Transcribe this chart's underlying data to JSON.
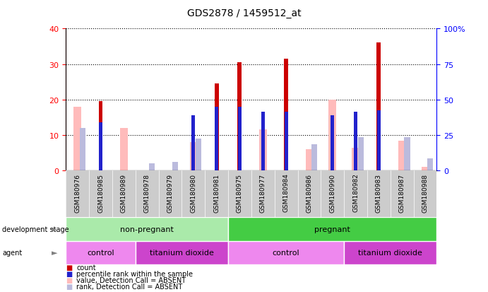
{
  "title": "GDS2878 / 1459512_at",
  "samples": [
    "GSM180976",
    "GSM180985",
    "GSM180989",
    "GSM180978",
    "GSM180979",
    "GSM180980",
    "GSM180981",
    "GSM180975",
    "GSM180977",
    "GSM180984",
    "GSM180986",
    "GSM180990",
    "GSM180982",
    "GSM180983",
    "GSM180987",
    "GSM180988"
  ],
  "count": [
    0,
    19.5,
    0,
    0,
    0,
    0,
    24.5,
    30.5,
    0,
    31.5,
    0,
    0,
    0,
    36,
    0,
    0
  ],
  "percentile_rank": [
    0,
    13.5,
    0,
    0,
    0,
    15.5,
    18,
    18,
    16.5,
    16.5,
    0,
    15.5,
    16.5,
    17,
    0,
    0
  ],
  "value_absent": [
    18,
    0,
    12,
    0,
    0,
    8,
    0,
    0,
    11.5,
    0,
    6,
    20,
    6.5,
    0,
    8.5,
    1
  ],
  "rank_absent": [
    12,
    0,
    0,
    2,
    2.5,
    9,
    0,
    0,
    0,
    0,
    7.5,
    0,
    9.5,
    0,
    9.5,
    3.5
  ],
  "ylim_left": [
    0,
    40
  ],
  "ylim_right": [
    0,
    100
  ],
  "yticks_left": [
    0,
    10,
    20,
    30,
    40
  ],
  "yticks_right": [
    0,
    25,
    50,
    75,
    100
  ],
  "color_count": "#cc0000",
  "color_percentile": "#2222cc",
  "color_value_absent": "#ffbbbb",
  "color_rank_absent": "#bbbbdd",
  "dev_stage_groups": [
    {
      "label": "non-pregnant",
      "start": 0,
      "end": 7,
      "color": "#aaeaaa"
    },
    {
      "label": "pregnant",
      "start": 7,
      "end": 16,
      "color": "#44cc44"
    }
  ],
  "agent_groups": [
    {
      "label": "control",
      "start": 0,
      "end": 3,
      "color": "#ee88ee"
    },
    {
      "label": "titanium dioxide",
      "start": 3,
      "end": 7,
      "color": "#cc44cc"
    },
    {
      "label": "control",
      "start": 7,
      "end": 12,
      "color": "#ee88ee"
    },
    {
      "label": "titanium dioxide",
      "start": 12,
      "end": 16,
      "color": "#cc44cc"
    }
  ],
  "legend_items": [
    {
      "label": "count",
      "color": "#cc0000"
    },
    {
      "label": "percentile rank within the sample",
      "color": "#2222cc"
    },
    {
      "label": "value, Detection Call = ABSENT",
      "color": "#ffbbbb"
    },
    {
      "label": "rank, Detection Call = ABSENT",
      "color": "#bbbbdd"
    }
  ]
}
